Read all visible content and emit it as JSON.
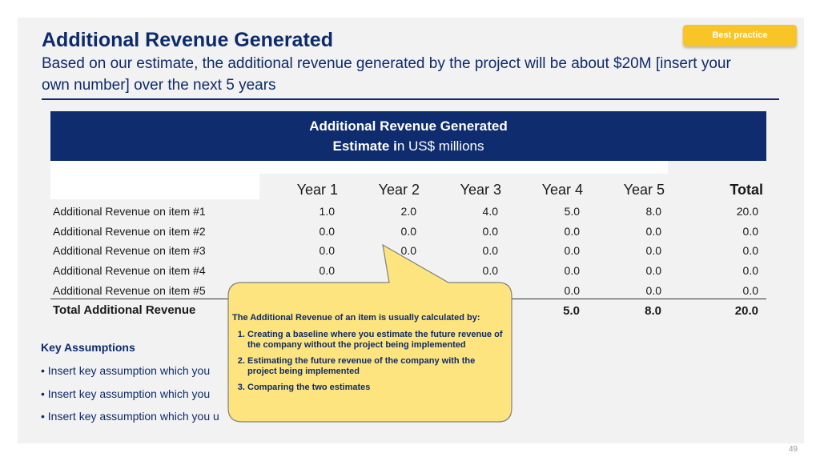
{
  "badge": "Best practice",
  "title": "Additional Revenue Generated",
  "subtitle": "Based on our estimate, the additional revenue generated by the project will be about $20M [insert your own number] over the next 5 years",
  "banner": {
    "line1": "Additional Revenue Generated",
    "line2_bold": "Estimate i",
    "line2_rest": "n US$ millions"
  },
  "table": {
    "headers": [
      "Year 1",
      "Year 2",
      "Year 3",
      "Year 4",
      "Year 5",
      "Total"
    ],
    "rows": [
      {
        "label": "Additional Revenue on item #1",
        "values": [
          "1.0",
          "2.0",
          "4.0",
          "5.0",
          "8.0",
          "20.0"
        ]
      },
      {
        "label": "Additional Revenue on item #2",
        "values": [
          "0.0",
          "0.0",
          "0.0",
          "0.0",
          "0.0",
          "0.0"
        ]
      },
      {
        "label": "Additional Revenue on item #3",
        "values": [
          "0.0",
          "0.0",
          "0.0",
          "0.0",
          "0.0",
          "0.0"
        ]
      },
      {
        "label": "Additional Revenue on item #4",
        "values": [
          "0.0",
          "",
          "0.0",
          "0.0",
          "0.0",
          "0.0"
        ]
      },
      {
        "label": "Additional Revenue on item #5",
        "values": [
          "",
          "",
          "",
          "0.0",
          "0.0",
          "0.0"
        ]
      }
    ],
    "total": {
      "label": "Total Additional Revenue",
      "values": [
        "",
        "",
        "",
        "5.0",
        "8.0",
        "20.0"
      ]
    }
  },
  "key_assumptions": {
    "title": "Key Assumptions",
    "items": [
      "• Insert key assumption which you",
      "• Insert key assumption which you",
      "• Insert key assumption which you u"
    ]
  },
  "callout": {
    "intro": "The Additional Revenue of an item is usually calculated by:",
    "steps": [
      "Creating a baseline where you estimate the future revenue of the company without the project being implemented",
      "Estimating the future revenue of the company with the project being implemented",
      "Comparing the two estimates"
    ],
    "fill": "#fde47f",
    "stroke": "#7f7f7f"
  },
  "colors": {
    "navy": "#0f2d6e",
    "badge": "#f9c526"
  },
  "page_number": "49"
}
